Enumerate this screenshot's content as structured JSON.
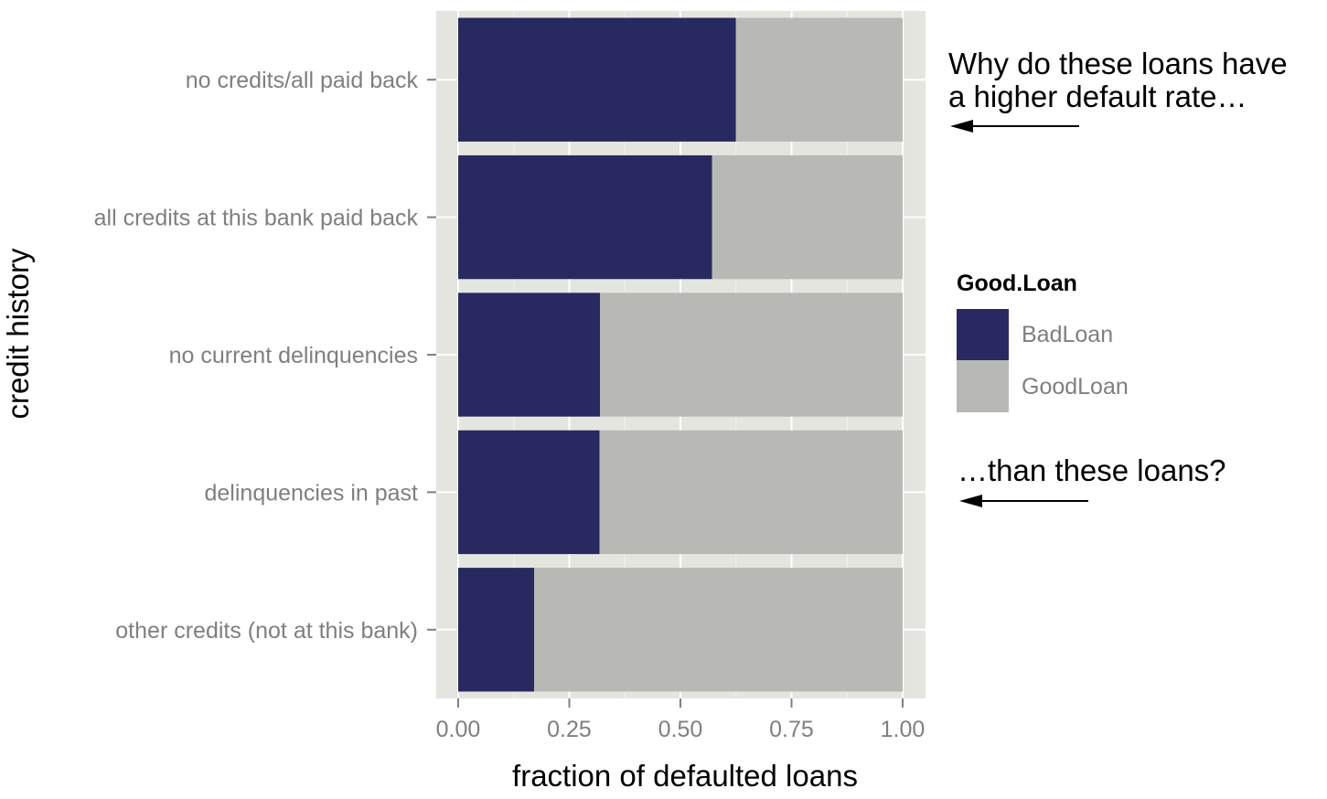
{
  "chart_data": {
    "type": "bar",
    "orientation": "horizontal",
    "stacked": true,
    "categories": [
      "no credits/all paid back",
      "all credits at this bank paid back",
      "no current delinquencies",
      "delinquencies in past",
      "other credits (not at this bank)"
    ],
    "series": [
      {
        "name": "BadLoan",
        "color": "#282960",
        "values": [
          0.625,
          0.571,
          0.319,
          0.318,
          0.171
        ]
      },
      {
        "name": "GoodLoan",
        "color": "#b8b9b4",
        "values": [
          0.375,
          0.429,
          0.681,
          0.682,
          0.829
        ]
      }
    ],
    "xlabel": "fraction of defaulted loans",
    "ylabel": "credit history",
    "xlim": [
      0,
      1
    ],
    "xticks": [
      "0.00",
      "0.25",
      "0.50",
      "0.75",
      "1.00"
    ],
    "xtick_values": [
      0,
      0.25,
      0.5,
      0.75,
      1
    ],
    "grid": true,
    "legend": {
      "title": "Good.Loan",
      "placement": "right",
      "entries": [
        "BadLoan",
        "GoodLoan"
      ]
    },
    "annotations": {
      "top_line1": "Why do these loans have",
      "top_line2": "a higher default rate…",
      "bottom": "…than these loans?"
    }
  }
}
